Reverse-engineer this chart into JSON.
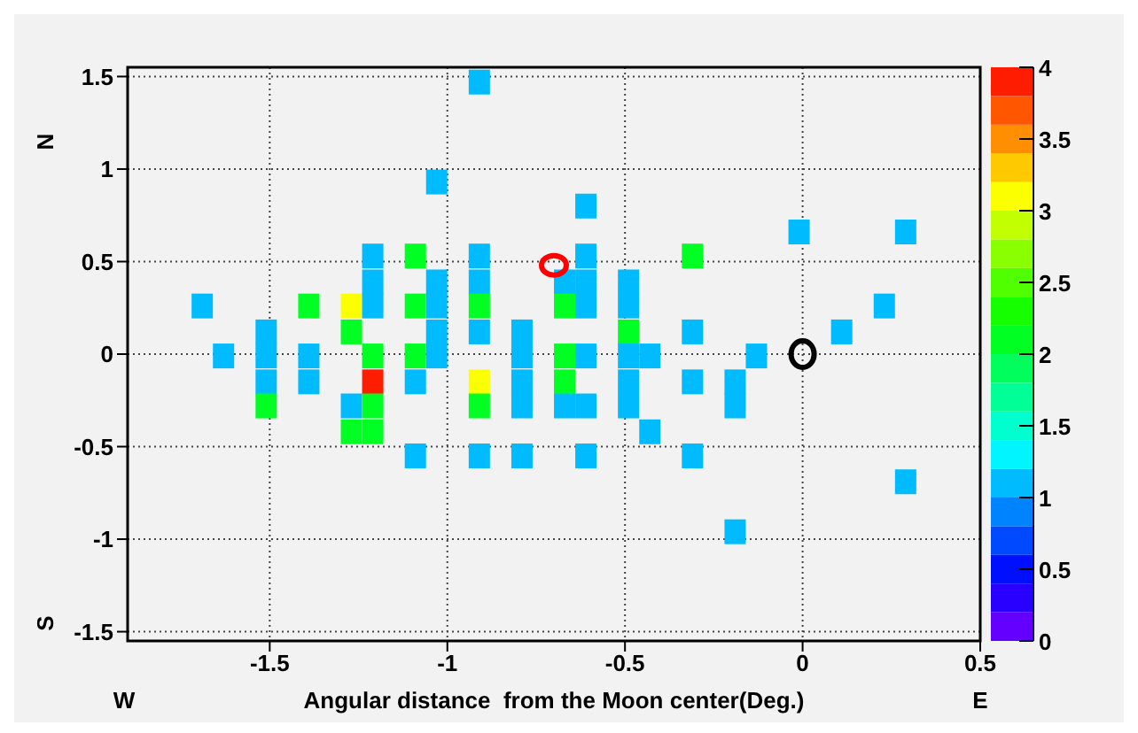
{
  "chart_data": {
    "type": "scatter",
    "xlabel": "Angular distance  from the Moon center(Deg.)",
    "annotations": [
      "N",
      "S",
      "W",
      "E"
    ],
    "x": [
      -1.69,
      -1.63,
      -1.51,
      -1.51,
      -1.51,
      -1.51,
      -1.39,
      -1.39,
      -1.39,
      -1.27,
      -1.27,
      -1.27,
      -1.27,
      -1.21,
      -1.21,
      -1.21,
      -1.21,
      -1.21,
      -1.21,
      -1.21,
      -1.09,
      -1.09,
      -1.09,
      -1.09,
      -1.09,
      -1.03,
      -1.03,
      -1.03,
      -1.03,
      -1.03,
      -0.91,
      -0.91,
      -0.91,
      -0.91,
      -0.91,
      -0.91,
      -0.91,
      -0.91,
      -0.79,
      -0.79,
      -0.79,
      -0.79,
      -0.79,
      -0.67,
      -0.67,
      -0.67,
      -0.67,
      -0.67,
      -0.61,
      -0.61,
      -0.61,
      -0.61,
      -0.61,
      -0.61,
      -0.61,
      -0.49,
      -0.49,
      -0.49,
      -0.49,
      -0.49,
      -0.49,
      -0.43,
      -0.43,
      -0.31,
      -0.31,
      -0.31,
      -0.31,
      -0.19,
      -0.19,
      -0.19,
      -0.13,
      -0.01,
      0.11,
      0.23,
      0.29,
      0.29
    ],
    "values": [
      0.26,
      -0.01,
      0.12,
      -0.01,
      -0.15,
      -0.28,
      0.26,
      -0.01,
      -0.15,
      0.26,
      0.12,
      -0.28,
      -0.42,
      0.53,
      0.39,
      0.26,
      -0.01,
      -0.15,
      -0.28,
      -0.42,
      0.53,
      0.26,
      -0.01,
      -0.15,
      -0.55,
      0.93,
      0.39,
      0.26,
      0.12,
      -0.01,
      1.47,
      0.53,
      0.39,
      0.26,
      0.12,
      -0.15,
      -0.28,
      -0.55,
      0.12,
      -0.01,
      -0.15,
      -0.28,
      -0.55,
      0.39,
      0.26,
      -0.01,
      -0.15,
      -0.28,
      0.8,
      0.53,
      0.39,
      0.26,
      -0.01,
      -0.28,
      -0.55,
      0.39,
      0.26,
      0.12,
      -0.01,
      -0.15,
      -0.28,
      -0.01,
      -0.42,
      0.53,
      0.12,
      -0.15,
      -0.55,
      -0.15,
      -0.28,
      -0.96,
      -0.01,
      0.66,
      0.12,
      0.26,
      0.66,
      -0.69
    ],
    "cvalues": [
      1,
      1,
      1,
      1,
      1,
      2,
      2,
      1,
      1,
      3,
      2,
      1,
      2,
      1,
      1,
      1,
      2,
      4,
      2,
      2,
      2,
      2,
      2,
      1,
      1,
      1,
      1,
      1,
      1,
      1,
      1,
      1,
      1,
      2,
      1,
      3,
      2,
      1,
      1,
      1,
      1,
      1,
      1,
      1,
      2,
      2,
      2,
      1,
      1,
      1,
      1,
      1,
      1,
      1,
      1,
      1,
      1,
      2,
      1,
      1,
      1,
      1,
      1,
      2,
      1,
      1,
      1,
      1,
      1,
      1,
      1,
      1,
      1,
      1,
      1,
      1
    ],
    "marker": "square",
    "xlim": [
      -1.9,
      0.5
    ],
    "xticks": [
      -1.5,
      -1,
      -0.5,
      0,
      0.5
    ],
    "ylim": [
      -1.55,
      1.55
    ],
    "yticks": [
      -1.5,
      -1,
      -0.5,
      0,
      0.5,
      1,
      1.5
    ],
    "clim": [
      0,
      4
    ],
    "cticks": [
      0,
      0.5,
      1,
      1.5,
      2,
      2.5,
      3,
      3.5,
      4
    ],
    "grid": true
  }
}
